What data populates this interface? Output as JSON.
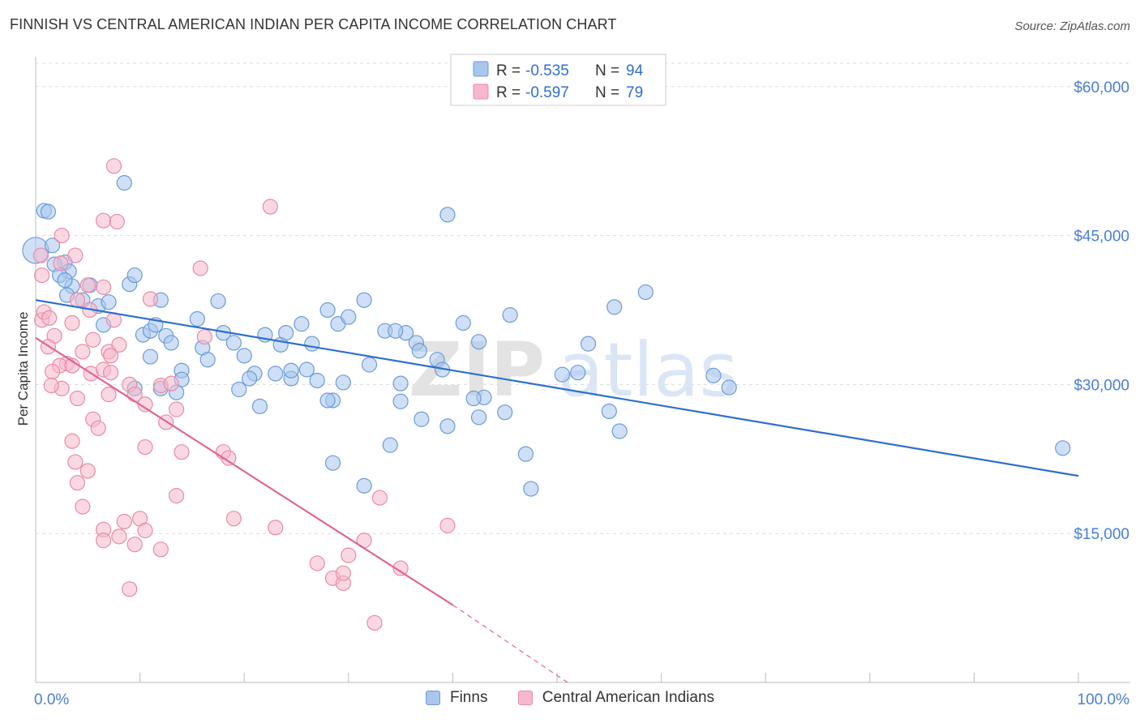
{
  "title": "FINNISH VS CENTRAL AMERICAN INDIAN PER CAPITA INCOME CORRELATION CHART",
  "source": "Source: ZipAtlas.com",
  "watermark": {
    "zip": "ZIP",
    "atlas": "atlas"
  },
  "colors": {
    "blue_fill": "#a8c6ee",
    "blue_stroke": "#6c9bd8",
    "blue_line": "#2d6fcf",
    "pink_fill": "#f6b8cb",
    "pink_stroke": "#e98aa8",
    "pink_line": "#e06592",
    "tick_label": "#4a7fd4",
    "grid": "#dcdcdc"
  },
  "legend": {
    "r_label": "R =",
    "n_label": "N =",
    "rows": [
      {
        "series": "finns",
        "r": "-0.535",
        "n": "94"
      },
      {
        "series": "cai",
        "r": "-0.597",
        "n": "79"
      }
    ]
  },
  "bottom_legend": {
    "finns": "Finns",
    "cai": "Central American Indians"
  },
  "chart_data": {
    "type": "scatter",
    "title": "FINNISH VS CENTRAL AMERICAN INDIAN PER CAPITA INCOME CORRELATION CHART",
    "xlabel": "",
    "ylabel": "Per Capita Income",
    "xlim": [
      0,
      100
    ],
    "ylim": [
      0,
      63000
    ],
    "x_tick_labels": [
      {
        "value": 0,
        "label": "0.0%"
      },
      {
        "value": 100,
        "label": "100.0%"
      }
    ],
    "y_ticks": [
      {
        "value": 15000,
        "label": "$15,000"
      },
      {
        "value": 30000,
        "label": "$30,000"
      },
      {
        "value": 45000,
        "label": "$45,000"
      },
      {
        "value": 60000,
        "label": "$60,000"
      }
    ],
    "series": [
      {
        "name": "Finns",
        "key": "finns",
        "trend": {
          "x0": 0,
          "y0": 38500,
          "x1": 100,
          "y1": 20800
        },
        "points": [
          [
            0.0,
            43500
          ],
          [
            0.8,
            47500
          ],
          [
            1.6,
            44000
          ],
          [
            1.2,
            47400
          ],
          [
            2.8,
            42300
          ],
          [
            1.8,
            42100
          ],
          [
            3.5,
            39900
          ],
          [
            3.2,
            41400
          ],
          [
            2.3,
            41000
          ],
          [
            2.8,
            40500
          ],
          [
            4.5,
            38500
          ],
          [
            6.0,
            37900
          ],
          [
            5.2,
            40000
          ],
          [
            7.0,
            38300
          ],
          [
            3.0,
            39000
          ],
          [
            8.5,
            50300
          ],
          [
            9.0,
            40100
          ],
          [
            9.5,
            41000
          ],
          [
            12.0,
            38500
          ],
          [
            10.3,
            35000
          ],
          [
            11.0,
            35400
          ],
          [
            11.5,
            36000
          ],
          [
            12.5,
            34900
          ],
          [
            13.0,
            34200
          ],
          [
            11.0,
            32800
          ],
          [
            14.0,
            31400
          ],
          [
            15.5,
            36600
          ],
          [
            17.5,
            38400
          ],
          [
            16.0,
            33700
          ],
          [
            18.0,
            35200
          ],
          [
            19.0,
            34200
          ],
          [
            20.0,
            32900
          ],
          [
            16.5,
            32500
          ],
          [
            22.0,
            35000
          ],
          [
            23.5,
            34000
          ],
          [
            24.0,
            35200
          ],
          [
            25.5,
            36100
          ],
          [
            26.5,
            34100
          ],
          [
            28.0,
            37500
          ],
          [
            29.0,
            36100
          ],
          [
            31.5,
            38500
          ],
          [
            33.5,
            35400
          ],
          [
            35.5,
            35200
          ],
          [
            36.5,
            34200
          ],
          [
            38.5,
            32500
          ],
          [
            39.0,
            31500
          ],
          [
            35.0,
            30100
          ],
          [
            32.0,
            32000
          ],
          [
            29.5,
            30200
          ],
          [
            27.0,
            30400
          ],
          [
            24.5,
            30600
          ],
          [
            23.0,
            31100
          ],
          [
            21.0,
            31100
          ],
          [
            20.5,
            30600
          ],
          [
            19.5,
            29500
          ],
          [
            21.5,
            27800
          ],
          [
            14.0,
            30500
          ],
          [
            13.5,
            29200
          ],
          [
            12.0,
            29600
          ],
          [
            9.5,
            29600
          ],
          [
            26.0,
            31500
          ],
          [
            24.5,
            31400
          ],
          [
            28.5,
            28400
          ],
          [
            28.0,
            28400
          ],
          [
            35.0,
            28300
          ],
          [
            37.0,
            26500
          ],
          [
            39.5,
            25800
          ],
          [
            42.5,
            26700
          ],
          [
            47.0,
            23000
          ],
          [
            47.5,
            19500
          ],
          [
            43.0,
            28700
          ],
          [
            45.0,
            27200
          ],
          [
            34.0,
            23900
          ],
          [
            31.5,
            19800
          ],
          [
            28.5,
            22100
          ],
          [
            41.0,
            36200
          ],
          [
            42.5,
            34300
          ],
          [
            45.5,
            37000
          ],
          [
            50.5,
            31000
          ],
          [
            52.0,
            31200
          ],
          [
            53.0,
            34100
          ],
          [
            55.5,
            37800
          ],
          [
            58.5,
            39300
          ],
          [
            55.0,
            27300
          ],
          [
            56.0,
            25300
          ],
          [
            65.0,
            30900
          ],
          [
            66.5,
            29700
          ],
          [
            98.5,
            23600
          ],
          [
            39.5,
            47100
          ],
          [
            34.5,
            35400
          ],
          [
            36.8,
            33400
          ],
          [
            42.0,
            28600
          ],
          [
            30.0,
            36800
          ],
          [
            6.5,
            36000
          ]
        ]
      },
      {
        "name": "Central American Indians",
        "key": "cai",
        "trend": {
          "x0": 0,
          "y0": 34700,
          "x1": 40,
          "y1": 7800,
          "dash_to_x": 51,
          "dash_to_y": 0
        },
        "points": [
          [
            0.5,
            43000
          ],
          [
            0.6,
            41000
          ],
          [
            2.5,
            45000
          ],
          [
            2.4,
            42200
          ],
          [
            0.6,
            36500
          ],
          [
            0.8,
            37300
          ],
          [
            1.3,
            36700
          ],
          [
            3.5,
            36200
          ],
          [
            1.8,
            34900
          ],
          [
            3.0,
            32100
          ],
          [
            2.3,
            31900
          ],
          [
            1.2,
            33800
          ],
          [
            1.6,
            31300
          ],
          [
            2.5,
            29600
          ],
          [
            1.5,
            29900
          ],
          [
            3.5,
            31900
          ],
          [
            4.5,
            33300
          ],
          [
            5.5,
            34500
          ],
          [
            7.0,
            33300
          ],
          [
            8.0,
            34000
          ],
          [
            7.5,
            36500
          ],
          [
            6.5,
            39800
          ],
          [
            5.0,
            40000
          ],
          [
            5.2,
            37500
          ],
          [
            5.3,
            31100
          ],
          [
            6.5,
            31500
          ],
          [
            7.2,
            32900
          ],
          [
            9.0,
            30000
          ],
          [
            10.5,
            28000
          ],
          [
            12.0,
            29900
          ],
          [
            13.5,
            27500
          ],
          [
            12.5,
            26200
          ],
          [
            7.0,
            29000
          ],
          [
            5.5,
            26500
          ],
          [
            6.0,
            25600
          ],
          [
            4.0,
            28600
          ],
          [
            3.5,
            24300
          ],
          [
            3.8,
            22200
          ],
          [
            4.0,
            20100
          ],
          [
            5.0,
            21300
          ],
          [
            10.5,
            23700
          ],
          [
            14.0,
            23200
          ],
          [
            18.0,
            23200
          ],
          [
            18.5,
            22600
          ],
          [
            13.5,
            18800
          ],
          [
            4.5,
            17700
          ],
          [
            6.5,
            15400
          ],
          [
            8.0,
            14700
          ],
          [
            8.5,
            16200
          ],
          [
            10.0,
            16500
          ],
          [
            10.5,
            15300
          ],
          [
            9.5,
            13900
          ],
          [
            12.0,
            13400
          ],
          [
            9.0,
            9400
          ],
          [
            6.5,
            14300
          ],
          [
            19.0,
            16500
          ],
          [
            23.0,
            15600
          ],
          [
            27.0,
            12000
          ],
          [
            28.5,
            10500
          ],
          [
            29.5,
            10000
          ],
          [
            30.0,
            12800
          ],
          [
            31.5,
            14300
          ],
          [
            29.5,
            11000
          ],
          [
            33.0,
            18600
          ],
          [
            35.0,
            11500
          ],
          [
            39.5,
            15800
          ],
          [
            32.5,
            6000
          ],
          [
            11.0,
            38600
          ],
          [
            15.8,
            41700
          ],
          [
            22.5,
            47900
          ],
          [
            7.5,
            52000
          ],
          [
            6.5,
            46500
          ],
          [
            7.8,
            46400
          ],
          [
            4.0,
            38500
          ],
          [
            13.0,
            30100
          ],
          [
            16.2,
            34800
          ],
          [
            3.8,
            43000
          ],
          [
            7.2,
            31200
          ],
          [
            9.5,
            29000
          ]
        ]
      }
    ]
  }
}
